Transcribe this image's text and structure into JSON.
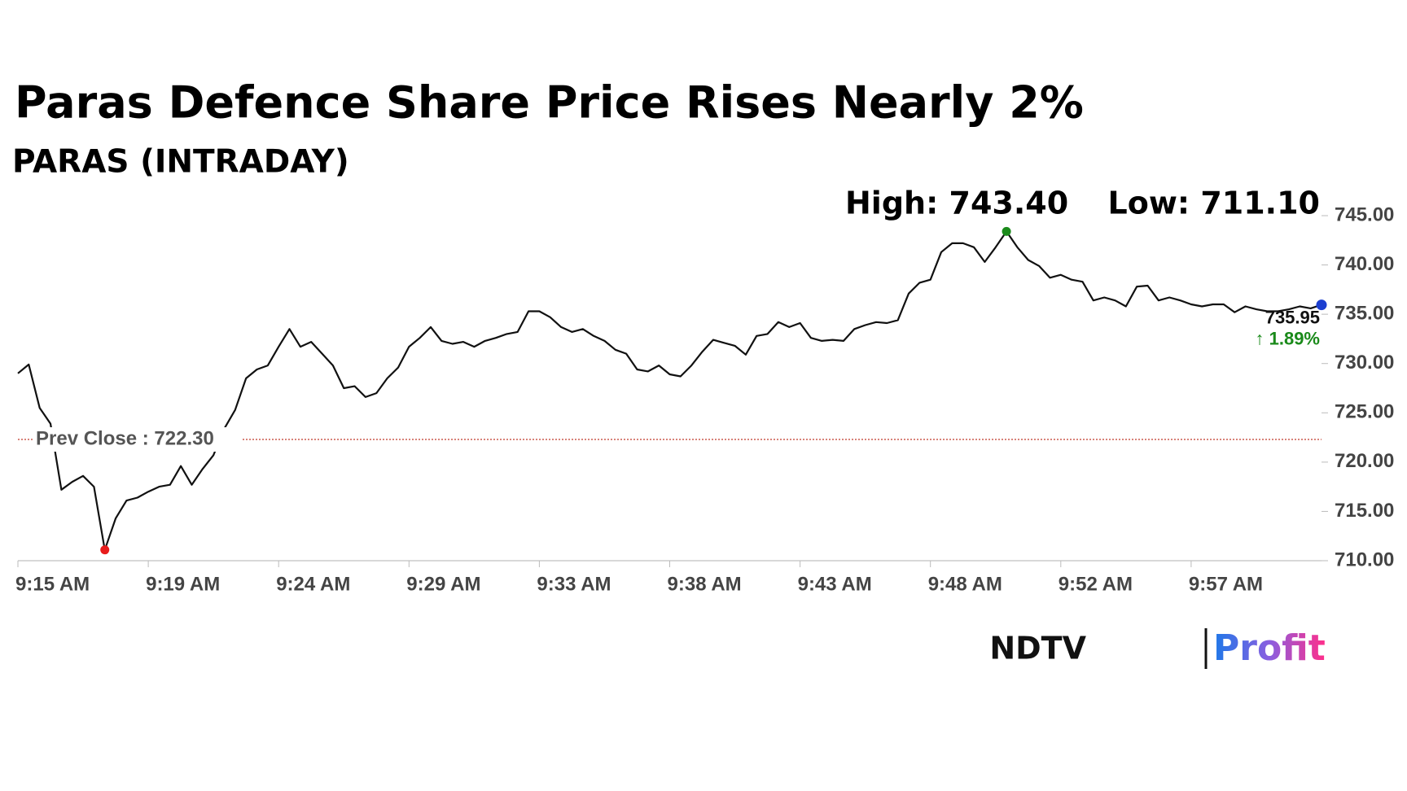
{
  "chart_data": {
    "type": "line",
    "title": "Paras Defence Share Price Rises Nearly 2%",
    "subtitle": "PARAS (INTRADAY)",
    "high_label": "High: 743.40",
    "low_label": "Low: 711.10",
    "last_label": "735.95",
    "change_label": "↑ 1.89%",
    "change_color": "#1a8a1a",
    "high_index": 91,
    "low_index": 8,
    "high_color": "#1a8a1a",
    "low_color": "#e81c1c",
    "last_color": "#1c3fd0",
    "prev_close": {
      "value": 722.3,
      "label": "Prev Close : 722.30",
      "color": "#c0392b"
    },
    "categories": [
      "9:15 AM",
      null,
      null,
      null,
      null,
      null,
      null,
      null,
      null,
      null,
      null,
      null,
      "9:19 AM",
      null,
      null,
      null,
      null,
      null,
      null,
      null,
      null,
      null,
      null,
      null,
      "9:24 AM",
      null,
      null,
      null,
      null,
      null,
      null,
      null,
      null,
      null,
      null,
      null,
      "9:29 AM",
      null,
      null,
      null,
      null,
      null,
      null,
      null,
      null,
      null,
      null,
      null,
      "9:33 AM",
      null,
      null,
      null,
      null,
      null,
      null,
      null,
      null,
      null,
      null,
      null,
      "9:38 AM",
      null,
      null,
      null,
      null,
      null,
      null,
      null,
      null,
      null,
      null,
      null,
      "9:43 AM",
      null,
      null,
      null,
      null,
      null,
      null,
      null,
      null,
      null,
      null,
      null,
      "9:48 AM",
      null,
      null,
      null,
      null,
      null,
      null,
      null,
      null,
      null,
      null,
      null,
      "9:52 AM",
      null,
      null,
      null,
      null,
      null,
      null,
      null,
      null,
      null,
      null,
      null,
      "9:57 AM",
      null,
      null,
      null,
      null,
      null,
      null,
      null,
      null,
      null,
      null,
      null,
      null
    ],
    "series": [
      {
        "name": "PARAS",
        "color": "#111111",
        "values": [
          729.0,
          729.9,
          725.5,
          723.9,
          717.2,
          718.0,
          718.6,
          717.5,
          711.1,
          714.3,
          716.1,
          716.4,
          717.0,
          717.5,
          717.7,
          719.6,
          717.7,
          719.3,
          720.7,
          723.4,
          725.3,
          728.5,
          729.4,
          729.8,
          731.7,
          733.5,
          731.7,
          732.2,
          731.0,
          729.8,
          727.5,
          727.7,
          726.6,
          727.0,
          728.5,
          729.6,
          731.7,
          732.6,
          733.7,
          732.3,
          732.0,
          732.2,
          731.7,
          732.3,
          732.6,
          733.0,
          733.2,
          735.3,
          735.3,
          734.7,
          733.7,
          733.2,
          733.5,
          732.8,
          732.3,
          731.4,
          731.0,
          729.4,
          729.2,
          729.8,
          728.9,
          728.7,
          729.8,
          731.2,
          732.4,
          732.1,
          731.8,
          730.9,
          732.8,
          733.0,
          734.2,
          733.7,
          734.1,
          732.6,
          732.3,
          732.4,
          732.3,
          733.5,
          733.9,
          734.2,
          734.1,
          734.4,
          737.1,
          738.2,
          738.5,
          741.3,
          742.2,
          742.2,
          741.8,
          740.3,
          741.8,
          743.4,
          741.8,
          740.5,
          739.9,
          738.7,
          739.0,
          738.5,
          738.3,
          736.4,
          736.7,
          736.4,
          735.8,
          737.8,
          737.9,
          736.4,
          736.7,
          736.4,
          736.0,
          735.8,
          736.0,
          736.0,
          735.2,
          735.8,
          735.5,
          735.3,
          735.3,
          735.5,
          735.8,
          735.6,
          735.95
        ]
      }
    ],
    "ylim": [
      710,
      745
    ],
    "yticks": [
      {
        "value": 745,
        "label": "745.00"
      },
      {
        "value": 740,
        "label": "740.00"
      },
      {
        "value": 735,
        "label": "735.00"
      },
      {
        "value": 730,
        "label": "730.00"
      },
      {
        "value": 725,
        "label": "725.00"
      },
      {
        "value": 720,
        "label": "720.00"
      },
      {
        "value": 715,
        "label": "715.00"
      },
      {
        "value": 710,
        "label": "710.00"
      }
    ],
    "grid": false,
    "logo": {
      "left": "NDTV",
      "right": "Profit"
    }
  }
}
